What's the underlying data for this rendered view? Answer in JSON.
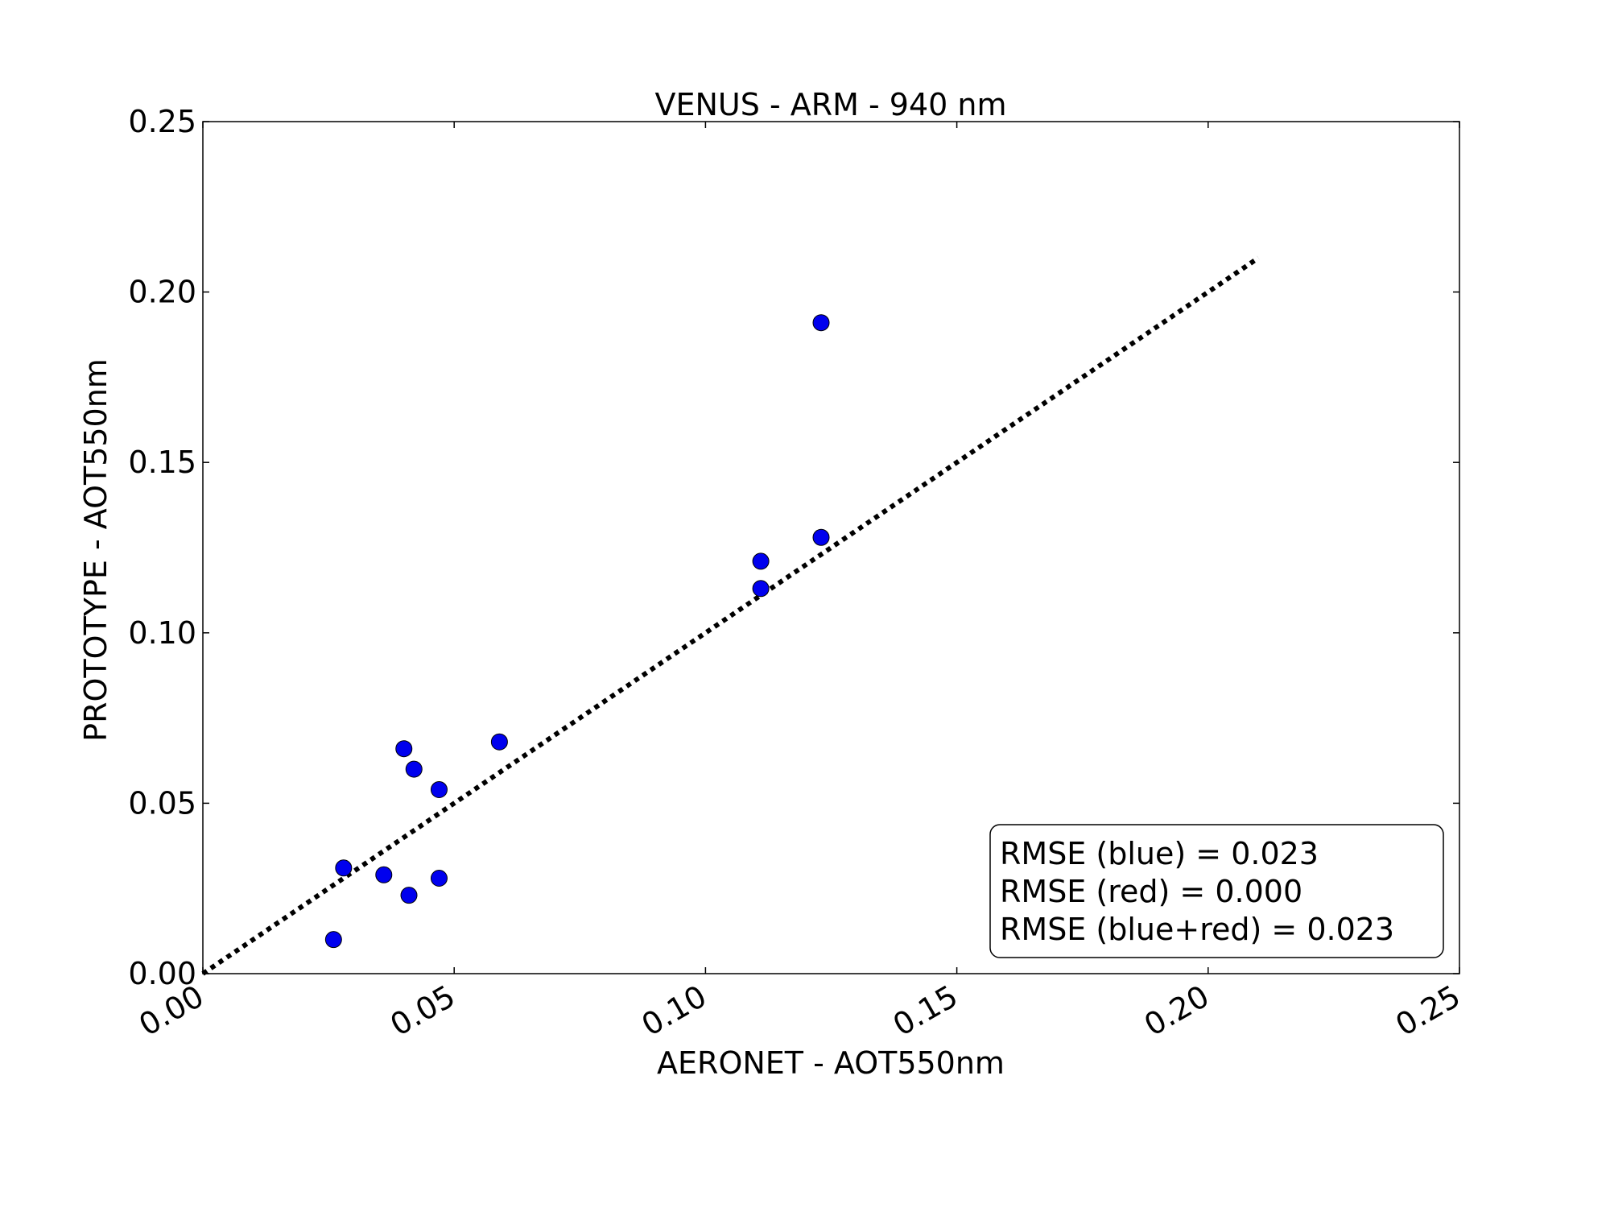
{
  "chart_data": {
    "type": "scatter",
    "title": "VENUS - ARM - 940 nm",
    "xlabel": "AERONET - AOT550nm",
    "ylabel": "PROTOTYPE - AOT550nm",
    "xlim": [
      0,
      0.25
    ],
    "ylim": [
      0,
      0.25
    ],
    "x_ticks": [
      "0.00",
      "0.05",
      "0.10",
      "0.15",
      "0.20",
      "0.25"
    ],
    "y_ticks": [
      "0.00",
      "0.05",
      "0.10",
      "0.15",
      "0.20",
      "0.25"
    ],
    "grid": false,
    "series": [
      {
        "color": "#0000ee",
        "points": [
          {
            "x": 0.026,
            "y": 0.01
          },
          {
            "x": 0.028,
            "y": 0.031
          },
          {
            "x": 0.036,
            "y": 0.029
          },
          {
            "x": 0.04,
            "y": 0.066
          },
          {
            "x": 0.041,
            "y": 0.023
          },
          {
            "x": 0.042,
            "y": 0.06
          },
          {
            "x": 0.047,
            "y": 0.028
          },
          {
            "x": 0.047,
            "y": 0.054
          },
          {
            "x": 0.059,
            "y": 0.068
          },
          {
            "x": 0.111,
            "y": 0.121
          },
          {
            "x": 0.111,
            "y": 0.113
          },
          {
            "x": 0.123,
            "y": 0.191
          },
          {
            "x": 0.123,
            "y": 0.128
          }
        ]
      }
    ],
    "reference_line": {
      "style": "dotted",
      "color": "#000000",
      "from": [
        0,
        0
      ],
      "to": [
        0.21,
        0.21
      ]
    },
    "legend_box": {
      "placement": "bottom-right",
      "lines": [
        "RMSE (blue) = 0.023",
        "RMSE (red) = 0.000",
        "RMSE (blue+red) = 0.023"
      ]
    }
  }
}
